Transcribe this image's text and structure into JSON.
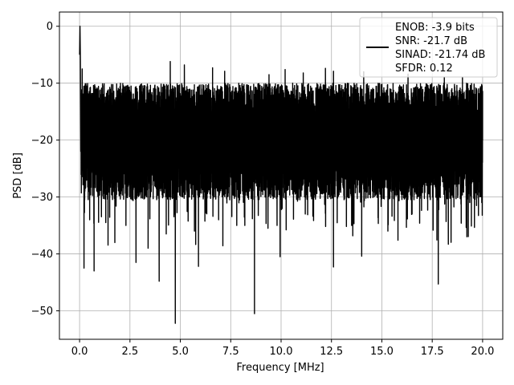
{
  "chart_data": {
    "type": "line",
    "title": "",
    "xlabel": "Frequency [MHz]",
    "ylabel": "PSD [dB]",
    "xlim": [
      -1.0,
      21.0
    ],
    "ylim": [
      -55,
      2.5
    ],
    "xticks": [
      0.0,
      2.5,
      5.0,
      7.5,
      10.0,
      12.5,
      15.0,
      17.5,
      20.0
    ],
    "xtick_labels": [
      "0.0",
      "2.5",
      "5.0",
      "7.5",
      "10.0",
      "12.5",
      "15.0",
      "17.5",
      "20.0"
    ],
    "yticks": [
      0,
      -10,
      -20,
      -30,
      -40,
      -50
    ],
    "ytick_labels": [
      "0",
      "−10",
      "−20",
      "−30",
      "−40",
      "−50"
    ],
    "grid": true,
    "legend_position": "top-right",
    "legend_lines": [
      "ENOB: -3.9 bits",
      "SNR: -21.7 dB",
      "SINAD: -21.74 dB",
      "SFDR: 0.12"
    ],
    "series": [
      {
        "color": "#000000",
        "description": "noise floor spectrum",
        "x_range": [
          0,
          20
        ],
        "typical_upper": -13,
        "typical_lower": -27,
        "peak": {
          "x": 0.02,
          "y": 0
        },
        "dips": [
          {
            "x": 0.22,
            "y": -42.5
          },
          {
            "x": 0.5,
            "y": -34
          },
          {
            "x": 0.72,
            "y": -43
          },
          {
            "x": 1.3,
            "y": -34.5
          },
          {
            "x": 1.75,
            "y": -38
          },
          {
            "x": 2.3,
            "y": -35
          },
          {
            "x": 2.8,
            "y": -41.5
          },
          {
            "x": 3.4,
            "y": -39
          },
          {
            "x": 3.95,
            "y": -44.8
          },
          {
            "x": 4.3,
            "y": -36.5
          },
          {
            "x": 4.75,
            "y": -52.2
          },
          {
            "x": 5.7,
            "y": -36
          },
          {
            "x": 5.9,
            "y": -42.2
          },
          {
            "x": 6.9,
            "y": -34
          },
          {
            "x": 7.8,
            "y": -35
          },
          {
            "x": 8.2,
            "y": -35
          },
          {
            "x": 8.68,
            "y": -50.5
          },
          {
            "x": 9.8,
            "y": -35
          },
          {
            "x": 9.95,
            "y": -40.5
          },
          {
            "x": 11.2,
            "y": -33
          },
          {
            "x": 12.6,
            "y": -42.3
          },
          {
            "x": 13.5,
            "y": -35
          },
          {
            "x": 14.0,
            "y": -40.4
          },
          {
            "x": 15.3,
            "y": -36
          },
          {
            "x": 15.8,
            "y": -37.6
          },
          {
            "x": 16.5,
            "y": -33
          },
          {
            "x": 17.8,
            "y": -45.3
          },
          {
            "x": 18.3,
            "y": -38.3
          },
          {
            "x": 19.2,
            "y": -34
          },
          {
            "x": 19.7,
            "y": -31.5
          }
        ],
        "spikes": [
          {
            "x": 4.5,
            "y": -6.2
          },
          {
            "x": 5.2,
            "y": -6.8
          },
          {
            "x": 6.6,
            "y": -7.3
          },
          {
            "x": 7.2,
            "y": -7.9
          },
          {
            "x": 9.4,
            "y": -8.5
          },
          {
            "x": 10.2,
            "y": -7.6
          },
          {
            "x": 11.1,
            "y": -8.2
          },
          {
            "x": 12.2,
            "y": -7.4
          },
          {
            "x": 12.6,
            "y": -7.9
          },
          {
            "x": 14.1,
            "y": -8.0
          },
          {
            "x": 16.3,
            "y": -8.4
          },
          {
            "x": 18.1,
            "y": -9.0
          },
          {
            "x": 19.0,
            "y": -9.0
          },
          {
            "x": 0.13,
            "y": -7.5
          },
          {
            "x": 0.25,
            "y": -10.5
          }
        ]
      }
    ]
  }
}
